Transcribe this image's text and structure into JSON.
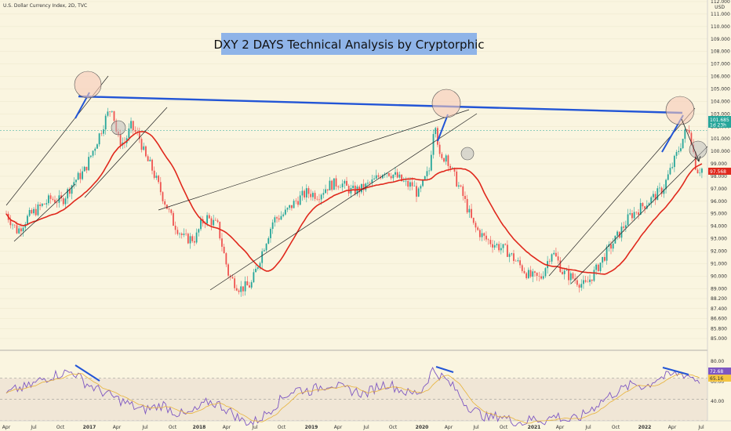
{
  "header": {
    "symbol_line": "U.S. Dollar Currency Index, 2D, TVC"
  },
  "chart_data": {
    "type": "candlestick",
    "title": "DXY 2 DAYS Technical Analysis by Cryptorphic",
    "currency": "USD",
    "x_ticks": [
      "Apr",
      "Jul",
      "Oct",
      "2017",
      "Apr",
      "Jul",
      "Oct",
      "2018",
      "Apr",
      "Jul",
      "Oct",
      "2019",
      "Apr",
      "Jul",
      "Oct",
      "2020",
      "Apr",
      "Jul",
      "Oct",
      "2021",
      "Apr",
      "Jul",
      "Oct",
      "2022",
      "Apr",
      "Jul"
    ],
    "y_ticks": [
      112,
      111,
      110,
      109,
      108,
      107,
      106,
      105,
      104,
      103,
      102,
      101,
      100,
      99,
      98,
      97,
      96,
      95,
      94,
      93,
      92,
      91,
      90,
      89,
      88.2,
      87.4,
      86.6,
      85.8,
      85
    ],
    "y_tick_labels": [
      "112.000",
      "111.000",
      "110.000",
      "109.000",
      "108.000",
      "107.000",
      "106.000",
      "105.000",
      "104.000",
      "103.000",
      "102.000",
      "101.000",
      "100.000",
      "99.000",
      "98.000",
      "97.000",
      "96.000",
      "95.000",
      "94.000",
      "93.000",
      "92.000",
      "91.000",
      "90.000",
      "89.000",
      "88.200",
      "87.400",
      "86.600",
      "85.800",
      "85.000"
    ],
    "ylim": [
      85,
      112
    ],
    "price_path": [
      [
        0,
        95.0
      ],
      [
        1.0,
        93.6
      ],
      [
        2.0,
        94.8
      ],
      [
        3.0,
        95.5
      ],
      [
        4.0,
        96.2
      ],
      [
        5.0,
        96.0
      ],
      [
        6.0,
        97.5
      ],
      [
        7.0,
        98.4
      ],
      [
        8.0,
        100.5
      ],
      [
        9.0,
        102.8
      ],
      [
        9.5,
        103.6
      ],
      [
        10.0,
        101.0
      ],
      [
        10.6,
        100.6
      ],
      [
        11.2,
        102.0
      ],
      [
        12.0,
        101.0
      ],
      [
        12.5,
        99.5
      ],
      [
        13.0,
        98.8
      ],
      [
        14.0,
        96.5
      ],
      [
        15.0,
        94.3
      ],
      [
        16.0,
        93.0
      ],
      [
        17.0,
        93.0
      ],
      [
        17.5,
        94.2
      ],
      [
        18.0,
        94.7
      ],
      [
        19.0,
        94.0
      ],
      [
        20.0,
        90.0
      ],
      [
        21.0,
        89.0
      ],
      [
        22.0,
        89.3
      ],
      [
        23.0,
        92.0
      ],
      [
        24.0,
        94.5
      ],
      [
        25.0,
        95.0
      ],
      [
        26.0,
        96.0
      ],
      [
        27.0,
        96.7
      ],
      [
        28.0,
        96.5
      ],
      [
        29.0,
        97.3
      ],
      [
        30.0,
        97.5
      ],
      [
        31.0,
        96.8
      ],
      [
        32.0,
        97.0
      ],
      [
        33.0,
        97.6
      ],
      [
        34.0,
        98.5
      ],
      [
        35.0,
        98.0
      ],
      [
        36.0,
        97.3
      ],
      [
        36.5,
        97.3
      ],
      [
        37.0,
        96.5
      ],
      [
        38.0,
        98.5
      ],
      [
        38.5,
        102.8
      ],
      [
        39.0,
        99.0
      ],
      [
        39.5,
        99.8
      ],
      [
        40.0,
        98.5
      ],
      [
        41.0,
        96.5
      ],
      [
        42.0,
        94.0
      ],
      [
        43.0,
        93.0
      ],
      [
        44.0,
        92.5
      ],
      [
        45.0,
        92.0
      ],
      [
        46.0,
        91.0
      ],
      [
        47.0,
        90.0
      ],
      [
        48.0,
        89.8
      ],
      [
        49.0,
        92.0
      ],
      [
        49.5,
        91.3
      ],
      [
        50.0,
        90.3
      ],
      [
        51.0,
        89.8
      ],
      [
        52.0,
        89.2
      ],
      [
        53.0,
        90.5
      ],
      [
        54.0,
        92.0
      ],
      [
        55.0,
        93.3
      ],
      [
        56.0,
        94.8
      ],
      [
        57.0,
        95.5
      ],
      [
        58.0,
        96.2
      ],
      [
        59.0,
        97.0
      ],
      [
        60.0,
        99.2
      ],
      [
        61.0,
        101.5
      ],
      [
        61.4,
        101.8
      ],
      [
        62.0,
        98.5
      ],
      [
        62.5,
        98.6
      ]
    ],
    "indicator": {
      "name": "RSI",
      "scale_ticks": [
        "80.00",
        "60.00",
        "40.00"
      ],
      "bands": [
        70,
        30
      ],
      "values": [
        55,
        60,
        62,
        68,
        72,
        75,
        76,
        66,
        60,
        55,
        50,
        45,
        40,
        42,
        45,
        38,
        35,
        40,
        48,
        45,
        38,
        30,
        28,
        35,
        45,
        55,
        60,
        58,
        62,
        65,
        60,
        58,
        55,
        62,
        65,
        60,
        55,
        58,
        78,
        70,
        60,
        45,
        38,
        32,
        35,
        30,
        28,
        32,
        30,
        35,
        30,
        32,
        40,
        48,
        55,
        60,
        65,
        62,
        70,
        72,
        75,
        72,
        66
      ]
    },
    "price_badges": {
      "current": "101.685",
      "current_time": "1d 23h",
      "sma": "97.568"
    },
    "rsi_badges": {
      "rsi": "72.68",
      "rsi_ma": "65.16"
    },
    "colors": {
      "background": "#faf5e0",
      "up": "#26a69a",
      "down": "#ef5350",
      "moving_average": "#e0281c",
      "horizontal_resistance": "#2255d6",
      "channel_lines": "#222222",
      "rsi_line": "#7e57c2",
      "rsi_band": "#f0e6d6",
      "title_highlight": "#8fb4e8",
      "pink_circle": "#f6c9b7",
      "grey_circle": "#bdbdbd"
    }
  }
}
